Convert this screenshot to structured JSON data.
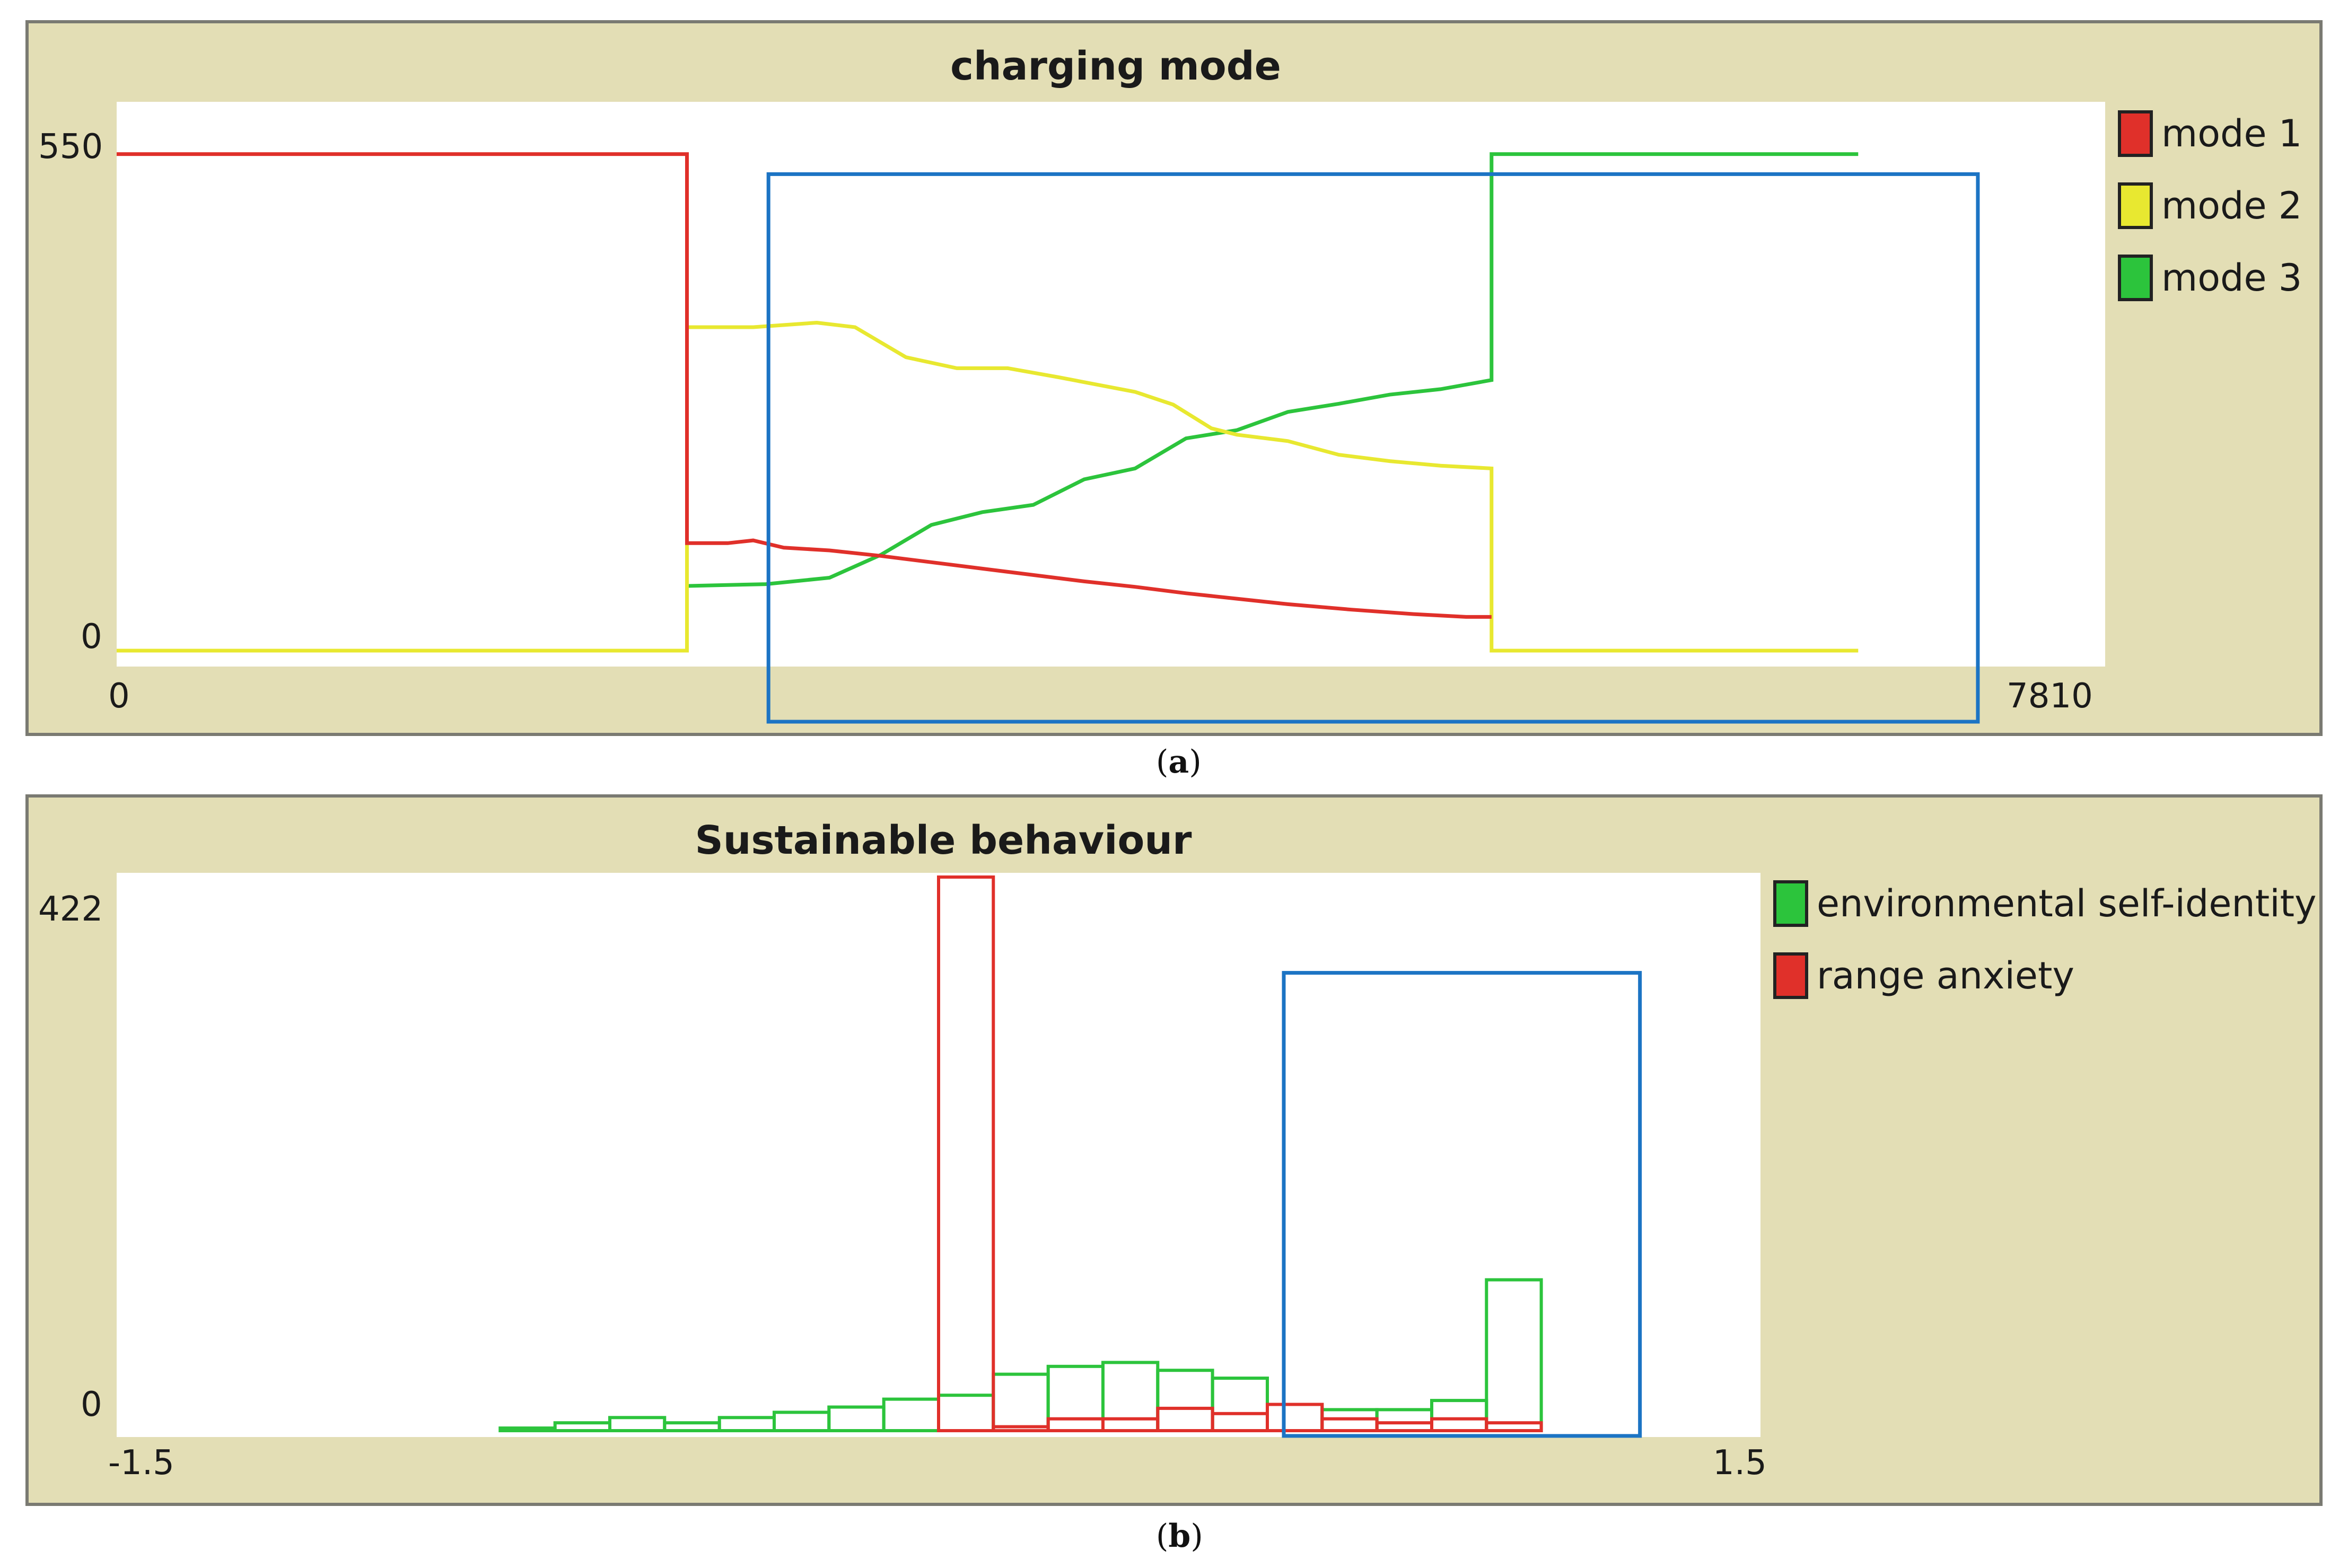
{
  "figure": {
    "caption_a": {
      "open": "(",
      "letter": "a",
      "close": ")"
    },
    "caption_b": {
      "open": "(",
      "letter": "b",
      "close": ")"
    },
    "highlight_color": "#1c74c4",
    "panel_bg": "#e3deb5"
  },
  "chart_data": [
    {
      "type": "line",
      "title": "charging mode",
      "xlabel": "",
      "ylabel": "",
      "xlim": [
        0,
        7810
      ],
      "ylim": [
        0,
        550
      ],
      "x_tick_labels": [
        "0",
        "7810"
      ],
      "y_tick_labels": [
        "550",
        "0"
      ],
      "legend_position": "right",
      "grid": false,
      "series": [
        {
          "name": "mode 1",
          "color": "#e0302a",
          "points": [
            [
              0,
              545
            ],
            [
              2240,
              545
            ],
            [
              2240,
              118
            ],
            [
              2400,
              118
            ],
            [
              2500,
              121
            ],
            [
              2620,
              113
            ],
            [
              2800,
              110
            ],
            [
              3000,
              104
            ],
            [
              3200,
              97
            ],
            [
              3400,
              90
            ],
            [
              3600,
              83
            ],
            [
              3800,
              76
            ],
            [
              4000,
              70
            ],
            [
              4200,
              63
            ],
            [
              4400,
              57
            ],
            [
              4600,
              51
            ],
            [
              4850,
              45
            ],
            [
              5100,
              40
            ],
            [
              5300,
              37
            ],
            [
              5400,
              37
            ]
          ]
        },
        {
          "name": "mode 2",
          "color": "#e8e830",
          "points": [
            [
              0,
              0
            ],
            [
              2240,
              0
            ],
            [
              2240,
              355
            ],
            [
              2500,
              355
            ],
            [
              2750,
              360
            ],
            [
              2900,
              355
            ],
            [
              3100,
              322
            ],
            [
              3300,
              310
            ],
            [
              3500,
              310
            ],
            [
              3700,
              300
            ],
            [
              3850,
              292
            ],
            [
              4000,
              284
            ],
            [
              4150,
              270
            ],
            [
              4300,
              244
            ],
            [
              4400,
              237
            ],
            [
              4600,
              230
            ],
            [
              4800,
              215
            ],
            [
              5000,
              208
            ],
            [
              5200,
              203
            ],
            [
              5400,
              200
            ],
            [
              5400,
              0
            ],
            [
              6840,
              0
            ]
          ]
        },
        {
          "name": "mode 3",
          "color": "#2cc43c",
          "points": [
            [
              0,
              0
            ],
            [
              2240,
              0
            ],
            [
              2240,
              71
            ],
            [
              2550,
              73
            ],
            [
              2800,
              80
            ],
            [
              3000,
              105
            ],
            [
              3200,
              138
            ],
            [
              3400,
              152
            ],
            [
              3600,
              160
            ],
            [
              3800,
              188
            ],
            [
              4000,
              200
            ],
            [
              4200,
              233
            ],
            [
              4400,
              242
            ],
            [
              4600,
              262
            ],
            [
              4800,
              271
            ],
            [
              5000,
              281
            ],
            [
              5200,
              287
            ],
            [
              5400,
              297
            ],
            [
              5400,
              545
            ],
            [
              6840,
              545
            ]
          ]
        }
      ],
      "highlight_box": {
        "x": [
          2560,
          7310
        ],
        "y": [
          -78,
          523
        ]
      }
    },
    {
      "type": "bar",
      "subtype": "histogram",
      "title": "Sustainable behaviour",
      "xlabel": "",
      "ylabel": "",
      "xlim": [
        -1.5,
        1.5
      ],
      "ylim": [
        0,
        422
      ],
      "x_tick_labels": [
        "-1.5",
        "1.5"
      ],
      "y_tick_labels": [
        "422",
        "0"
      ],
      "legend_position": "right",
      "grid": false,
      "bin_width": 0.1,
      "series": [
        {
          "name": "environmental self-identity",
          "color": "#2cc43c",
          "bins": [
            {
              "x0": -0.8,
              "value": 2
            },
            {
              "x0": -0.7,
              "value": 6
            },
            {
              "x0": -0.6,
              "value": 10
            },
            {
              "x0": -0.5,
              "value": 6
            },
            {
              "x0": -0.4,
              "value": 10
            },
            {
              "x0": -0.3,
              "value": 14
            },
            {
              "x0": -0.2,
              "value": 18
            },
            {
              "x0": -0.1,
              "value": 24
            },
            {
              "x0": 0.0,
              "value": 27
            },
            {
              "x0": 0.1,
              "value": 43
            },
            {
              "x0": 0.2,
              "value": 49
            },
            {
              "x0": 0.3,
              "value": 52
            },
            {
              "x0": 0.4,
              "value": 46
            },
            {
              "x0": 0.5,
              "value": 40
            },
            {
              "x0": 0.6,
              "value": 20
            },
            {
              "x0": 0.7,
              "value": 16
            },
            {
              "x0": 0.8,
              "value": 16
            },
            {
              "x0": 0.9,
              "value": 23
            },
            {
              "x0": 1.0,
              "value": 115
            }
          ]
        },
        {
          "name": "range anxiety",
          "color": "#e0302a",
          "bins": [
            {
              "x0": 0.0,
              "value": 422
            },
            {
              "x0": 0.1,
              "value": 3
            },
            {
              "x0": 0.2,
              "value": 9
            },
            {
              "x0": 0.3,
              "value": 9
            },
            {
              "x0": 0.4,
              "value": 17
            },
            {
              "x0": 0.5,
              "value": 13
            },
            {
              "x0": 0.6,
              "value": 20
            },
            {
              "x0": 0.7,
              "value": 9
            },
            {
              "x0": 0.8,
              "value": 6
            },
            {
              "x0": 0.9,
              "value": 9
            },
            {
              "x0": 1.0,
              "value": 6
            }
          ]
        }
      ],
      "highlight_box": {
        "x": [
          0.63,
          1.28
        ],
        "y": [
          -4,
          349
        ]
      }
    }
  ]
}
